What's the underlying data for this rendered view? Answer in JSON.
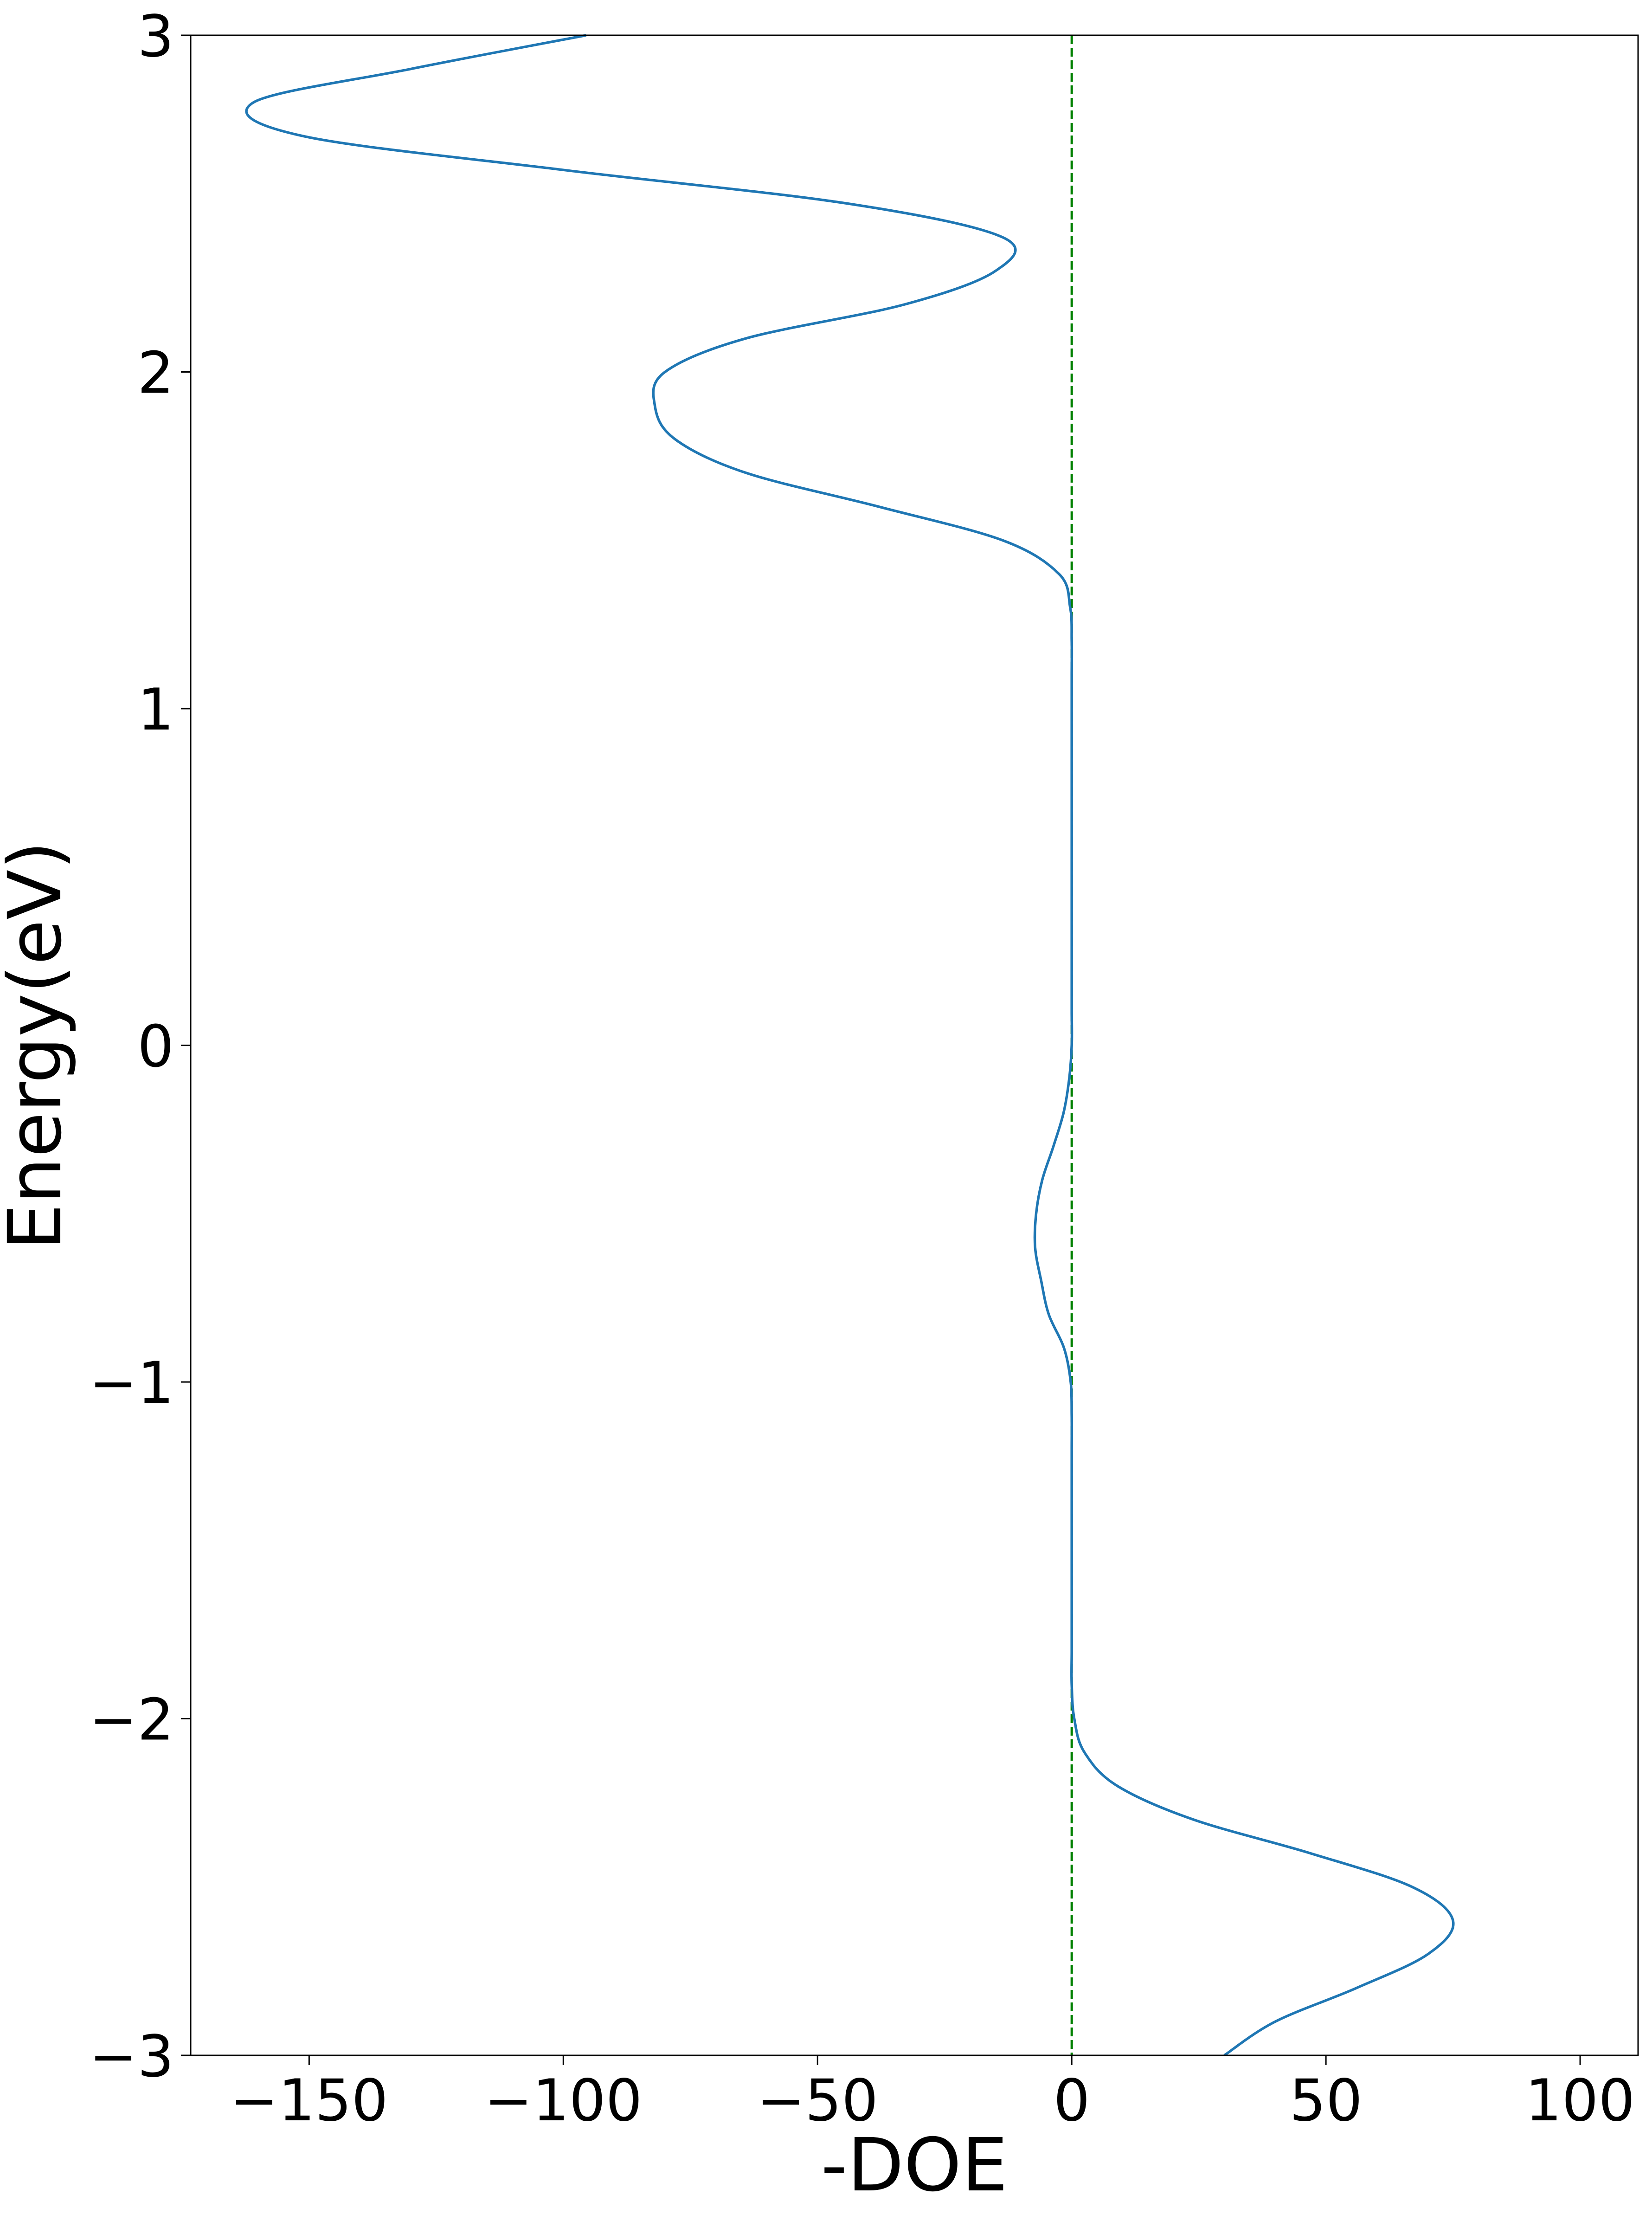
{
  "chart_data": {
    "type": "line",
    "xlabel": "-DOE",
    "ylabel": "Energy(eV)",
    "xlim": [
      -173.3,
      111.4
    ],
    "ylim": [
      -3,
      3
    ],
    "xticks": [
      {
        "value": -150,
        "label": "−150"
      },
      {
        "value": -100,
        "label": "−100"
      },
      {
        "value": -50,
        "label": "−50"
      },
      0,
      50,
      100
    ],
    "yticks": [
      {
        "value": -3,
        "label": "−3"
      },
      {
        "value": -2,
        "label": "−2"
      },
      {
        "value": -1,
        "label": "−1"
      },
      0,
      1,
      2,
      3
    ],
    "reference_line": {
      "x": 0,
      "color": "#008000",
      "style": "dashed"
    },
    "series": [
      {
        "color": "#1f77b4",
        "x": [
          30,
          40,
          56,
          70,
          75,
          67,
          47,
          24,
          9,
          2.5,
          0.5,
          0,
          0,
          0,
          0,
          0,
          0,
          0,
          0,
          0,
          -0.2,
          -1.5,
          -4.5,
          -6,
          -7.2,
          -7,
          -5.8,
          -3.6,
          -1.6,
          -0.5,
          0,
          0,
          0,
          0,
          0,
          0,
          0,
          0,
          0,
          0,
          0,
          0,
          0,
          -0.3,
          -2.5,
          -13.6,
          -38,
          -64,
          -78,
          -82,
          -80,
          -64,
          -33,
          -15,
          -13.6,
          -44,
          -100,
          -151,
          -161,
          -130,
          -95.5
        ],
        "values": [
          -3.0,
          -2.9,
          -2.8,
          -2.7,
          -2.6,
          -2.5,
          -2.4,
          -2.3,
          -2.2,
          -2.1,
          -2.0,
          -1.9,
          -1.8,
          -1.7,
          -1.6,
          -1.5,
          -1.4,
          -1.3,
          -1.2,
          -1.1,
          -1.0,
          -0.9,
          -0.8,
          -0.7,
          -0.6,
          -0.5,
          -0.4,
          -0.3,
          -0.2,
          -0.1,
          0.0,
          0.1,
          0.2,
          0.3,
          0.4,
          0.5,
          0.6,
          0.7,
          0.8,
          0.9,
          1.0,
          1.1,
          1.2,
          1.3,
          1.4,
          1.5,
          1.6,
          1.7,
          1.8,
          1.9,
          2.0,
          2.1,
          2.2,
          2.3,
          2.4,
          2.5,
          2.6,
          2.7,
          2.8,
          2.9,
          3.0
        ]
      }
    ]
  }
}
